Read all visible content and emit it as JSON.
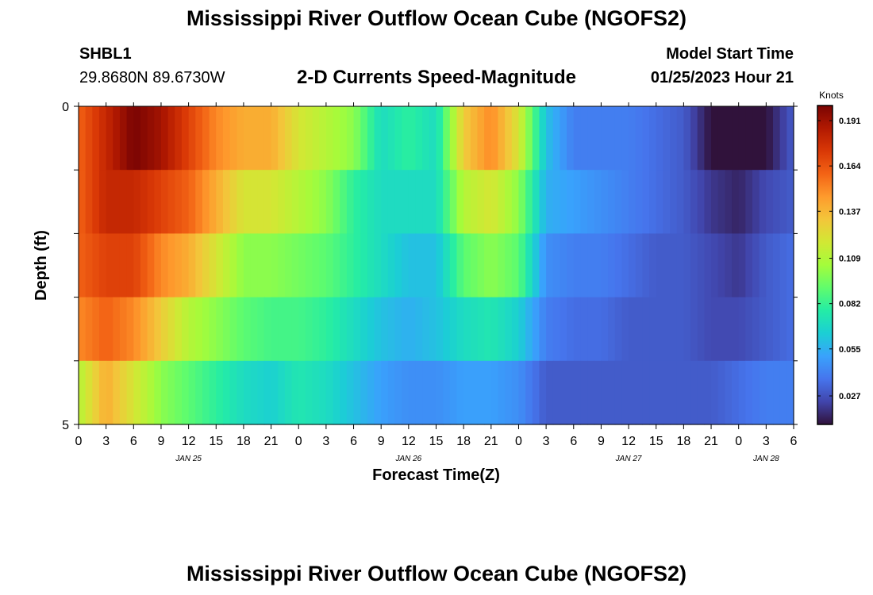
{
  "page": {
    "title": "Mississippi River Outflow Ocean Cube (NGOFS2)",
    "station": "SHBL1",
    "coords": "29.8680N  89.6730W",
    "subtitle": "2-D Currents Speed-Magnitude",
    "model_label": "Model Start Time",
    "model_time": "01/25/2023 Hour 21",
    "title_repeat": "Mississippi River Outflow Ocean Cube (NGOFS2)"
  },
  "chart_data": {
    "type": "heatmap",
    "title": "2-D Currents Speed-Magnitude",
    "xlabel": "Forecast Time(Z)",
    "ylabel": "Depth (ft)",
    "colorbar_label": "Knots",
    "x_tick_labels": [
      "0",
      "3",
      "6",
      "9",
      "12",
      "15",
      "18",
      "21",
      "0",
      "3",
      "6",
      "9",
      "12",
      "15",
      "18",
      "21",
      "0",
      "3",
      "6",
      "9",
      "12",
      "15",
      "18",
      "21",
      "0",
      "3",
      "6"
    ],
    "date_labels": [
      {
        "label": "JAN 25",
        "at_hour": 12
      },
      {
        "label": "JAN 26",
        "at_hour": 36
      },
      {
        "label": "JAN 27",
        "at_hour": 60
      },
      {
        "label": "JAN 28",
        "at_hour": 75
      }
    ],
    "x_range_hours": [
      0,
      78
    ],
    "y_tick_labels": [
      "0",
      "5"
    ],
    "y_range": [
      0,
      5
    ],
    "color_range": [
      0.01,
      0.2
    ],
    "colorbar_ticks": [
      0.027,
      0.055,
      0.082,
      0.109,
      0.137,
      0.164,
      0.191
    ],
    "colormap": [
      "#30123b",
      "#4145ab",
      "#4675ed",
      "#39a2fc",
      "#1bcfd4",
      "#24eca6",
      "#61fc6c",
      "#a4fc3b",
      "#d1e834",
      "#f3c63a",
      "#fe9b2d",
      "#f36315",
      "#d93806",
      "#b11901",
      "#7a0403"
    ],
    "depth_levels": [
      0.5,
      1.5,
      2.5,
      3.5,
      4.5
    ],
    "hours_sampled": [
      0,
      3,
      6,
      9,
      12,
      15,
      18,
      21,
      24,
      27,
      30,
      33,
      36,
      39,
      42,
      45,
      48,
      51,
      54,
      57,
      60,
      63,
      66,
      69,
      72,
      75,
      78
    ],
    "values": [
      [
        0.16,
        0.18,
        0.2,
        0.19,
        0.17,
        0.15,
        0.14,
        0.14,
        0.12,
        0.11,
        0.1,
        0.07,
        0.08,
        0.07,
        0.13,
        0.15,
        0.12,
        0.06,
        0.04,
        0.04,
        0.04,
        0.035,
        0.03,
        0.01,
        0.005,
        0.01,
        0.03
      ],
      [
        0.16,
        0.18,
        0.18,
        0.17,
        0.16,
        0.14,
        0.12,
        0.12,
        0.11,
        0.1,
        0.08,
        0.07,
        0.07,
        0.07,
        0.11,
        0.12,
        0.1,
        0.055,
        0.05,
        0.045,
        0.04,
        0.035,
        0.03,
        0.02,
        0.015,
        0.025,
        0.03
      ],
      [
        0.16,
        0.17,
        0.17,
        0.15,
        0.14,
        0.12,
        0.1,
        0.1,
        0.095,
        0.09,
        0.08,
        0.07,
        0.06,
        0.06,
        0.09,
        0.1,
        0.09,
        0.045,
        0.04,
        0.04,
        0.035,
        0.03,
        0.03,
        0.025,
        0.02,
        0.03,
        0.035
      ],
      [
        0.15,
        0.16,
        0.15,
        0.13,
        0.11,
        0.1,
        0.09,
        0.085,
        0.085,
        0.08,
        0.07,
        0.06,
        0.055,
        0.06,
        0.07,
        0.075,
        0.065,
        0.04,
        0.035,
        0.035,
        0.03,
        0.03,
        0.03,
        0.025,
        0.025,
        0.03,
        0.035
      ],
      [
        0.11,
        0.14,
        0.12,
        0.1,
        0.09,
        0.08,
        0.07,
        0.065,
        0.075,
        0.07,
        0.06,
        0.05,
        0.045,
        0.045,
        0.05,
        0.05,
        0.045,
        0.03,
        0.03,
        0.03,
        0.03,
        0.03,
        0.03,
        0.03,
        0.035,
        0.04,
        0.04
      ]
    ]
  }
}
